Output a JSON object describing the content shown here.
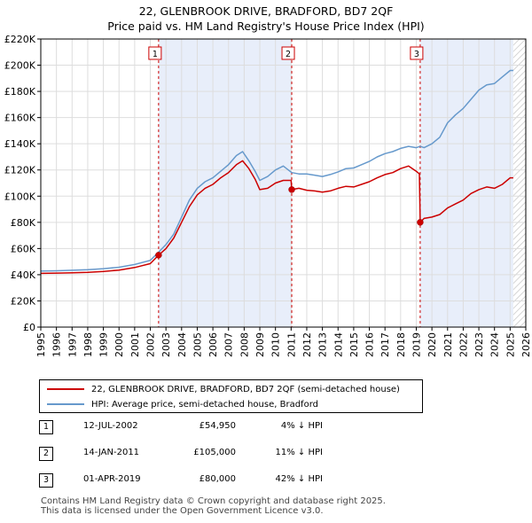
{
  "chart_data": {
    "type": "line",
    "title": "22, GLENBROOK DRIVE, BRADFORD, BD7 2QF",
    "subtitle": "Price paid vs. HM Land Registry's House Price Index (HPI)",
    "xlim": [
      1995,
      2026
    ],
    "ylim": [
      0,
      220000
    ],
    "x_ticks": [
      "1995",
      "1996",
      "1997",
      "1998",
      "1999",
      "2000",
      "2001",
      "2002",
      "2003",
      "2004",
      "2005",
      "2006",
      "2007",
      "2008",
      "2009",
      "2010",
      "2011",
      "2012",
      "2013",
      "2014",
      "2015",
      "2016",
      "2017",
      "2018",
      "2019",
      "2020",
      "2021",
      "2022",
      "2023",
      "2024",
      "2025",
      "2026"
    ],
    "y_ticks": [
      {
        "value": 0,
        "label": "£0"
      },
      {
        "value": 20000,
        "label": "£20K"
      },
      {
        "value": 40000,
        "label": "£40K"
      },
      {
        "value": 60000,
        "label": "£60K"
      },
      {
        "value": 80000,
        "label": "£80K"
      },
      {
        "value": 100000,
        "label": "£100K"
      },
      {
        "value": 120000,
        "label": "£120K"
      },
      {
        "value": 140000,
        "label": "£140K"
      },
      {
        "value": 160000,
        "label": "£160K"
      },
      {
        "value": 180000,
        "label": "£180K"
      },
      {
        "value": 200000,
        "label": "£200K"
      },
      {
        "value": 220000,
        "label": "£220K"
      }
    ],
    "grid": true,
    "shaded_periods": [
      [
        2002.53,
        2011.04
      ],
      [
        2019.25,
        2025.2
      ]
    ],
    "hatched_after": 2025.2,
    "series": [
      {
        "name": "22, GLENBROOK DRIVE, BRADFORD, BD7 2QF (semi-detached house)",
        "color": "#cc0000",
        "points": [
          [
            1995.0,
            41000
          ],
          [
            1996.0,
            41200
          ],
          [
            1997.0,
            41500
          ],
          [
            1998.0,
            41800
          ],
          [
            1999.0,
            42500
          ],
          [
            2000.0,
            43500
          ],
          [
            2001.0,
            45500
          ],
          [
            2002.0,
            48500
          ],
          [
            2002.53,
            54950
          ],
          [
            2003.0,
            60000
          ],
          [
            2003.5,
            68000
          ],
          [
            2004.0,
            80000
          ],
          [
            2004.5,
            92000
          ],
          [
            2005.0,
            101000
          ],
          [
            2005.5,
            106000
          ],
          [
            2006.0,
            109000
          ],
          [
            2006.5,
            114000
          ],
          [
            2007.0,
            118000
          ],
          [
            2007.5,
            124000
          ],
          [
            2007.9,
            127000
          ],
          [
            2008.3,
            121000
          ],
          [
            2008.7,
            113000
          ],
          [
            2009.0,
            105000
          ],
          [
            2009.5,
            106000
          ],
          [
            2010.0,
            110000
          ],
          [
            2010.5,
            112000
          ],
          [
            2011.0,
            112000
          ],
          [
            2011.04,
            105000
          ],
          [
            2011.5,
            106000
          ],
          [
            2012.0,
            104500
          ],
          [
            2012.5,
            104000
          ],
          [
            2013.0,
            103000
          ],
          [
            2013.5,
            104000
          ],
          [
            2014.0,
            106000
          ],
          [
            2014.5,
            107500
          ],
          [
            2015.0,
            107000
          ],
          [
            2015.5,
            109000
          ],
          [
            2016.0,
            111000
          ],
          [
            2016.5,
            114000
          ],
          [
            2017.0,
            116500
          ],
          [
            2017.5,
            118000
          ],
          [
            2018.0,
            121000
          ],
          [
            2018.5,
            123000
          ],
          [
            2019.0,
            119000
          ],
          [
            2019.2,
            117000
          ],
          [
            2019.25,
            80000
          ],
          [
            2019.5,
            83000
          ],
          [
            2020.0,
            84000
          ],
          [
            2020.5,
            86000
          ],
          [
            2021.0,
            91000
          ],
          [
            2021.5,
            94000
          ],
          [
            2022.0,
            97000
          ],
          [
            2022.5,
            102000
          ],
          [
            2023.0,
            105000
          ],
          [
            2023.5,
            107000
          ],
          [
            2024.0,
            106000
          ],
          [
            2024.5,
            109000
          ],
          [
            2025.0,
            114000
          ],
          [
            2025.2,
            114000
          ]
        ]
      },
      {
        "name": "HPI: Average price, semi-detached house, Bradford",
        "color": "#6699cc",
        "points": [
          [
            1995.0,
            42800
          ],
          [
            1996.0,
            43000
          ],
          [
            1997.0,
            43400
          ],
          [
            1998.0,
            43800
          ],
          [
            1999.0,
            44600
          ],
          [
            2000.0,
            45700
          ],
          [
            2001.0,
            47800
          ],
          [
            2002.0,
            51000
          ],
          [
            2002.53,
            57300
          ],
          [
            2003.0,
            63000
          ],
          [
            2003.5,
            71000
          ],
          [
            2004.0,
            84000
          ],
          [
            2004.5,
            97000
          ],
          [
            2005.0,
            106000
          ],
          [
            2005.5,
            111000
          ],
          [
            2006.0,
            114000
          ],
          [
            2006.5,
            119000
          ],
          [
            2007.0,
            124000
          ],
          [
            2007.5,
            131000
          ],
          [
            2007.9,
            134000
          ],
          [
            2008.3,
            127000
          ],
          [
            2008.7,
            119000
          ],
          [
            2009.0,
            112000
          ],
          [
            2009.5,
            115000
          ],
          [
            2010.0,
            120000
          ],
          [
            2010.5,
            123000
          ],
          [
            2011.04,
            118000
          ],
          [
            2011.5,
            117000
          ],
          [
            2012.0,
            117000
          ],
          [
            2012.5,
            116000
          ],
          [
            2013.0,
            115000
          ],
          [
            2013.5,
            116500
          ],
          [
            2014.0,
            118500
          ],
          [
            2014.5,
            121000
          ],
          [
            2015.0,
            121500
          ],
          [
            2015.5,
            124000
          ],
          [
            2016.0,
            126500
          ],
          [
            2016.5,
            130000
          ],
          [
            2017.0,
            132500
          ],
          [
            2017.5,
            134000
          ],
          [
            2018.0,
            136500
          ],
          [
            2018.5,
            138000
          ],
          [
            2019.0,
            137000
          ],
          [
            2019.25,
            138000
          ],
          [
            2019.5,
            137000
          ],
          [
            2020.0,
            140000
          ],
          [
            2020.5,
            145000
          ],
          [
            2021.0,
            156000
          ],
          [
            2021.5,
            162000
          ],
          [
            2022.0,
            167000
          ],
          [
            2022.5,
            174000
          ],
          [
            2023.0,
            181000
          ],
          [
            2023.5,
            185000
          ],
          [
            2024.0,
            186000
          ],
          [
            2024.5,
            191000
          ],
          [
            2025.0,
            196000
          ],
          [
            2025.2,
            196000
          ]
        ]
      }
    ],
    "sale_markers": [
      {
        "label": "1",
        "x": 2002.53,
        "y": 54950
      },
      {
        "label": "2",
        "x": 2011.04,
        "y": 105000
      },
      {
        "label": "3",
        "x": 2019.25,
        "y": 80000
      }
    ]
  },
  "legend": {
    "property_label": "22, GLENBROOK DRIVE, BRADFORD, BD7 2QF (semi-detached house)",
    "hpi_label": "HPI: Average price, semi-detached house, Bradford"
  },
  "sales": [
    {
      "num": "1",
      "date": "12-JUL-2002",
      "price": "£54,950",
      "hpi": "4% ↓ HPI"
    },
    {
      "num": "2",
      "date": "14-JAN-2011",
      "price": "£105,000",
      "hpi": "11% ↓ HPI"
    },
    {
      "num": "3",
      "date": "01-APR-2019",
      "price": "£80,000",
      "hpi": "42% ↓ HPI"
    }
  ],
  "footer": {
    "line1": "Contains HM Land Registry data © Crown copyright and database right 2025.",
    "line2": "This data is licensed under the Open Government Licence v3.0."
  }
}
